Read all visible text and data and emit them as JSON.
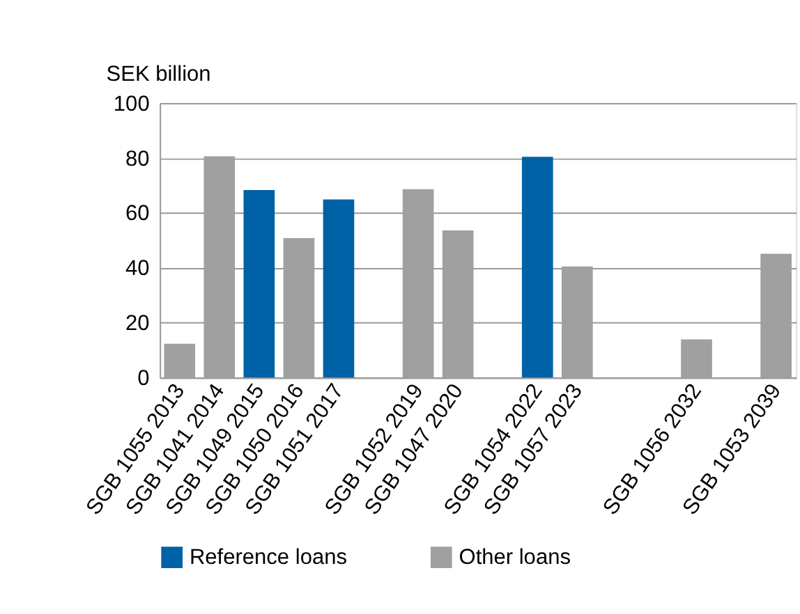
{
  "chart_data": {
    "type": "bar",
    "ylabel": "SEK billion",
    "categories": [
      "SGB 1055 2013",
      "SGB 1041 2014",
      "SGB 1049 2015",
      "SGB 1050 2016",
      "SGB 1051 2017",
      null,
      "SGB 1052 2019",
      "SGB 1047 2020",
      null,
      "SGB 1054 2022",
      "SGB 1057 2023",
      null,
      null,
      "SGB 1056 2032",
      null,
      "SGB 1053 2039"
    ],
    "series": [
      {
        "name": "Reference loans",
        "color": "#0062a6",
        "values": [
          null,
          null,
          68.3,
          null,
          64.9,
          null,
          null,
          null,
          null,
          80.4,
          null,
          null,
          null,
          null,
          null,
          null
        ]
      },
      {
        "name": "Other loans",
        "color": "#a0a0a0",
        "values": [
          12.3,
          80.6,
          null,
          50.8,
          null,
          null,
          68.6,
          53.6,
          null,
          null,
          40.5,
          null,
          null,
          13.9,
          null,
          45.1
        ]
      }
    ],
    "ylim": [
      0,
      100
    ],
    "yticks": [
      0,
      20,
      40,
      60,
      80,
      100
    ],
    "grid": "y",
    "legend": "bottom"
  }
}
